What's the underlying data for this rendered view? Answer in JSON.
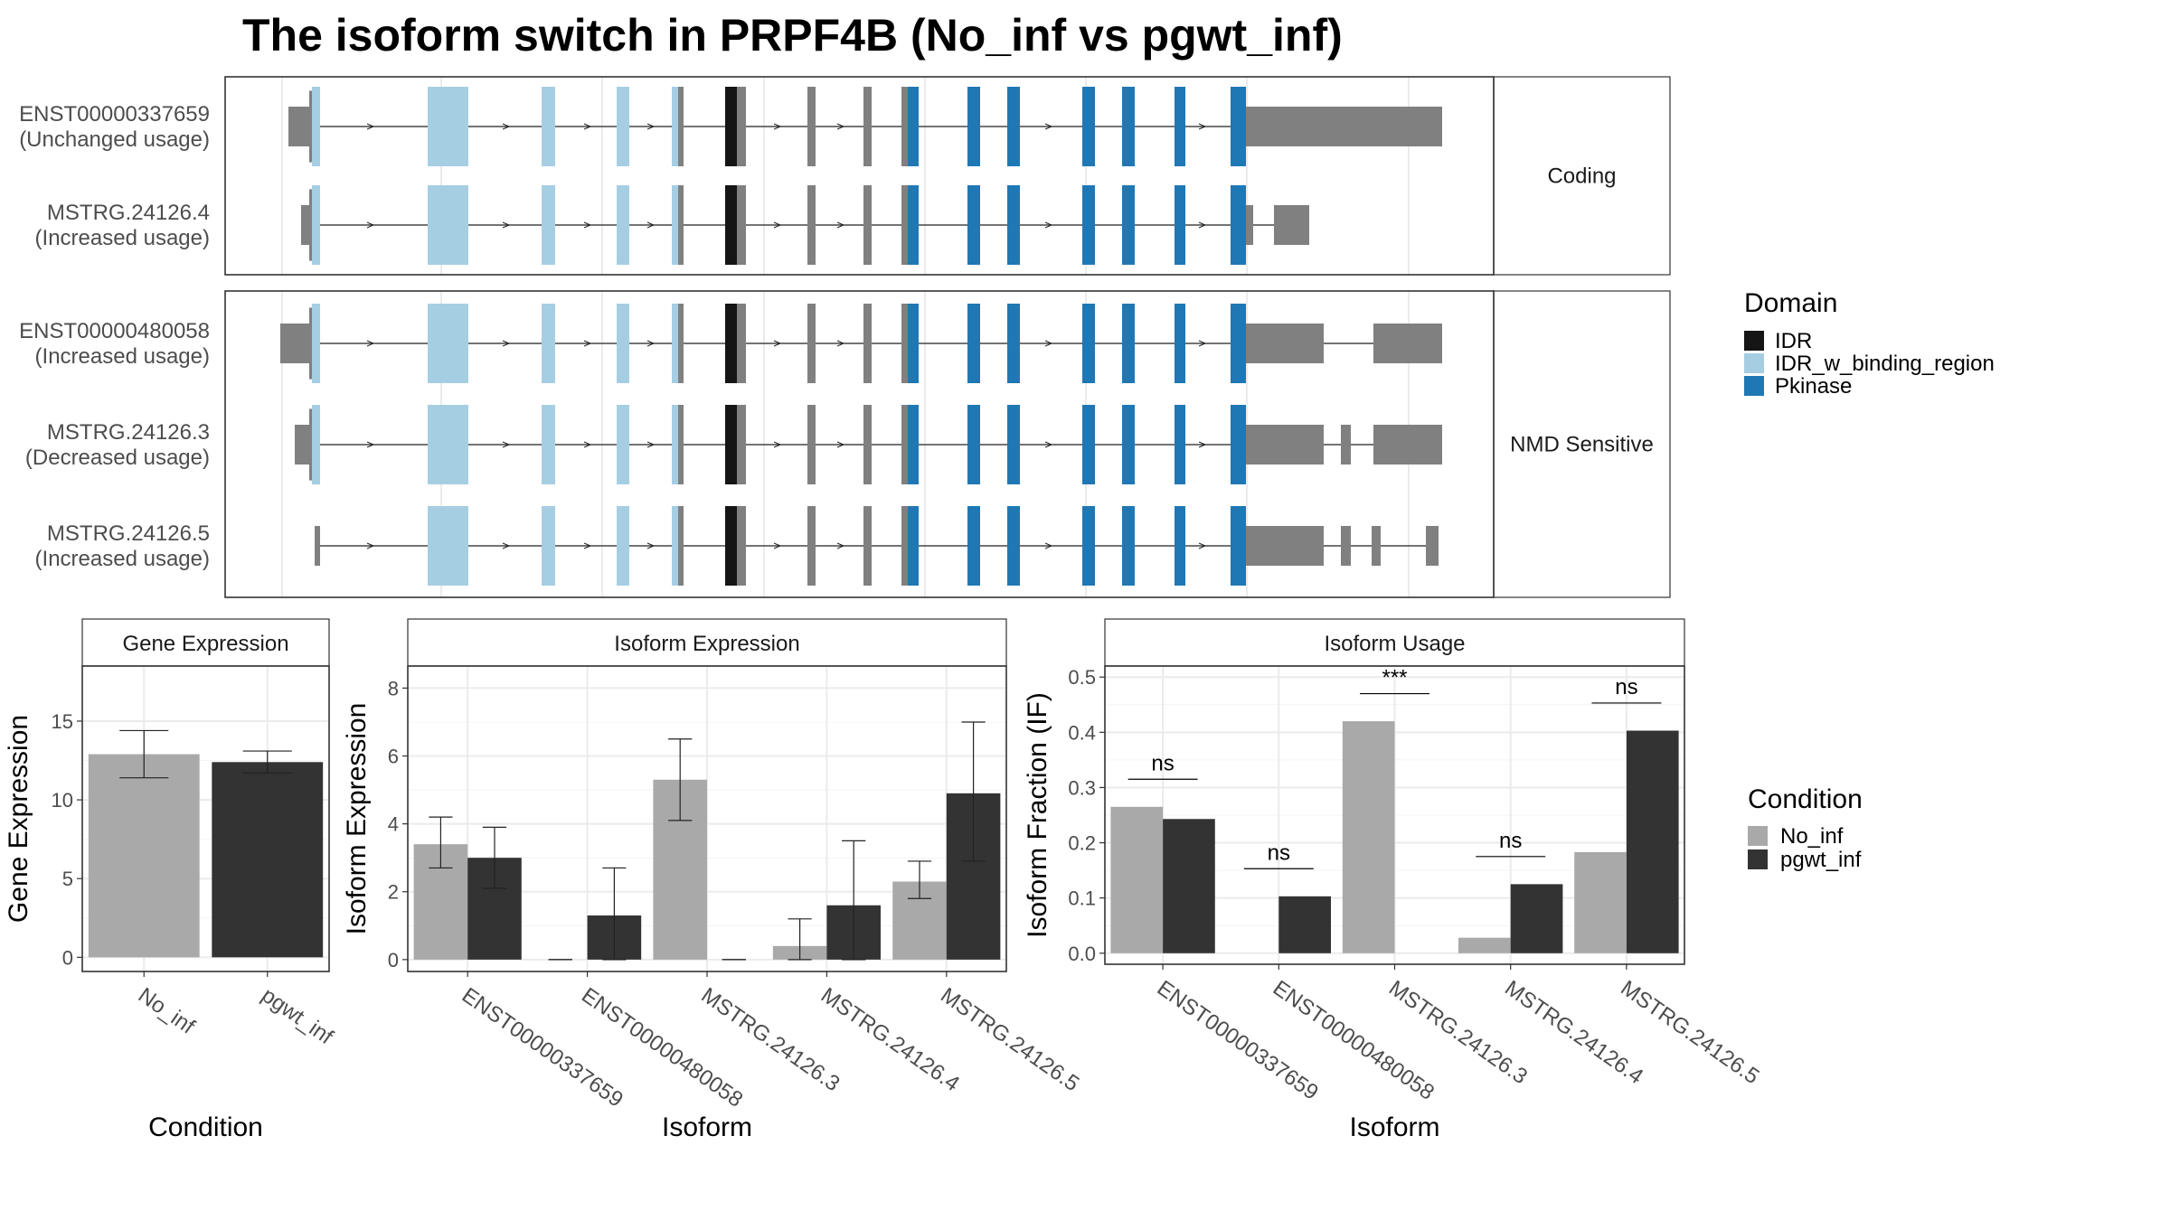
{
  "title": "The isoform switch in PRPF4B (No_inf vs pgwt_inf)",
  "colors": {
    "IDR": "#151515",
    "IDR_w_binding_region": "#a6cee3",
    "Pkinase": "#1f78b4",
    "utr": "#808080",
    "No_inf": "#a9a9a9",
    "pgwt_inf": "#333333",
    "grid": "#ebebeb"
  },
  "structure": {
    "facets": [
      {
        "label": "Coding",
        "isoforms": [
          "ENST00000337659",
          "MSTRG.24126.4"
        ]
      },
      {
        "label": "NMD Sensitive",
        "isoforms": [
          "ENST00000480058",
          "MSTRG.24126.3",
          "MSTRG.24126.5"
        ]
      }
    ],
    "isoforms": [
      {
        "id": "ENST00000337659",
        "usage": "(Unchanged usage)"
      },
      {
        "id": "MSTRG.24126.4",
        "usage": "(Increased usage)"
      },
      {
        "id": "ENST00000480058",
        "usage": "(Increased usage)"
      },
      {
        "id": "MSTRG.24126.3",
        "usage": "(Decreased usage)"
      },
      {
        "id": "MSTRG.24126.5",
        "usage": "(Increased usage)"
      }
    ],
    "legend": {
      "title": "Domain",
      "entries": [
        "IDR",
        "IDR_w_binding_region",
        "Pkinase"
      ]
    }
  },
  "condition_legend": {
    "title": "Condition",
    "entries": [
      "No_inf",
      "pgwt_inf"
    ]
  },
  "chart_data": [
    {
      "type": "bar",
      "title": "Gene Expression",
      "xlabel": "Condition",
      "ylabel": "Gene Expression",
      "categories": [
        "No_inf",
        "pgwt_inf"
      ],
      "values": [
        12.9,
        12.4
      ],
      "error_low": [
        11.4,
        11.7
      ],
      "error_high": [
        14.4,
        13.1
      ],
      "ylim": [
        -0.9,
        18.5
      ],
      "yticks": [
        0,
        5,
        10,
        15
      ],
      "grid": true
    },
    {
      "type": "bar",
      "title": "Isoform Expression",
      "xlabel": "Isoform",
      "ylabel": "Isoform Expression",
      "categories": [
        "ENST00000337659",
        "ENST00000480058",
        "MSTRG.24126.3",
        "MSTRG.24126.4",
        "MSTRG.24126.5"
      ],
      "series": [
        {
          "name": "No_inf",
          "values": [
            3.4,
            0,
            5.3,
            0.4,
            2.3
          ],
          "error_low": [
            2.7,
            0,
            4.1,
            0.0,
            1.8
          ],
          "error_high": [
            4.2,
            0,
            6.5,
            1.2,
            2.9
          ]
        },
        {
          "name": "pgwt_inf",
          "values": [
            3.0,
            1.3,
            0,
            1.6,
            4.9
          ],
          "error_low": [
            2.1,
            0.0,
            0,
            0.0,
            2.9
          ],
          "error_high": [
            3.9,
            2.7,
            0,
            3.5,
            7.0
          ]
        }
      ],
      "ylim": [
        -0.35,
        8.65
      ],
      "yticks": [
        0,
        2,
        4,
        6,
        8
      ],
      "grid": true
    },
    {
      "type": "bar",
      "title": "Isoform Usage",
      "xlabel": "Isoform",
      "ylabel": "Isoform Fraction (IF)",
      "categories": [
        "ENST00000337659",
        "ENST00000480058",
        "MSTRG.24126.3",
        "MSTRG.24126.4",
        "MSTRG.24126.5"
      ],
      "series": [
        {
          "name": "No_inf",
          "values": [
            0.265,
            0.0,
            0.42,
            0.028,
            0.183
          ]
        },
        {
          "name": "pgwt_inf",
          "values": [
            0.243,
            0.103,
            0.0,
            0.125,
            0.403
          ]
        }
      ],
      "annotations": [
        "ns",
        "ns",
        "***",
        "ns",
        "ns"
      ],
      "ylim": [
        -0.02,
        0.52
      ],
      "yticks": [
        0.0,
        0.1,
        0.2,
        0.3,
        0.4,
        0.5
      ],
      "grid": true
    }
  ]
}
